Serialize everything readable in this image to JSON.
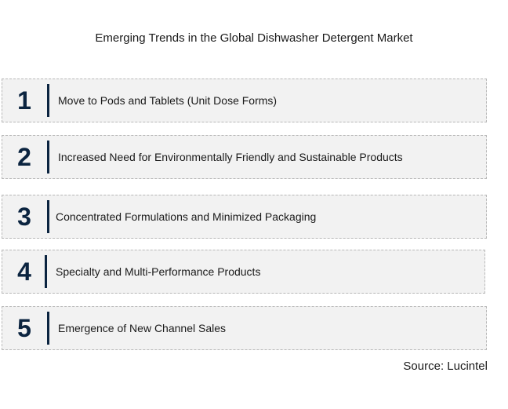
{
  "title": "Emerging Trends in the Global Dishwasher Detergent Market",
  "trends": [
    {
      "number": "1",
      "label": "Move to Pods and Tablets (Unit Dose Forms)"
    },
    {
      "number": "2",
      "label": "Increased Need for Environmentally Friendly and Sustainable Products"
    },
    {
      "number": "3",
      "label": "Concentrated Formulations and Minimized Packaging"
    },
    {
      "number": "4",
      "label": "Specialty and Multi-Performance Products"
    },
    {
      "number": "5",
      "label": "Emergence of New Channel Sales"
    }
  ],
  "source": "Source: Lucintel",
  "colors": {
    "accent": "#0b2440",
    "row_background": "#f2f2f2",
    "row_border": "#b8b8b8"
  }
}
